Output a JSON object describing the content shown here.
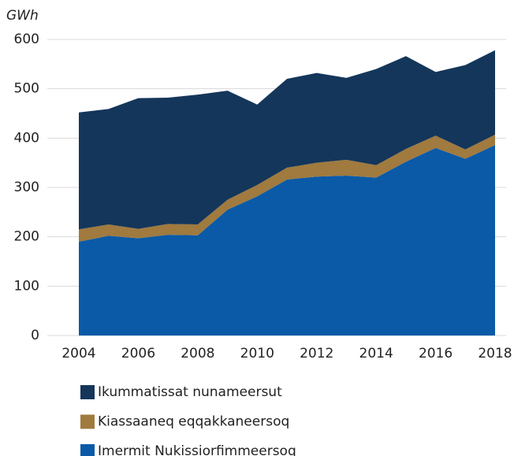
{
  "chart_data": {
    "type": "stacked_area",
    "y_label": "GWh",
    "x": [
      2004,
      2005,
      2006,
      2007,
      2008,
      2009,
      2010,
      2011,
      2012,
      2013,
      2014,
      2015,
      2016,
      2017,
      2018
    ],
    "xlim": [
      2004,
      2018
    ],
    "xticks": [
      2004,
      2006,
      2008,
      2010,
      2012,
      2014,
      2016,
      2018
    ],
    "ylim": [
      0,
      600
    ],
    "yticks": [
      0,
      100,
      200,
      300,
      400,
      500,
      600
    ],
    "grid": true,
    "series": [
      {
        "name": "Ikummatissat nunameersut",
        "color": "#14365a",
        "values": [
          237,
          234,
          265,
          256,
          263,
          221,
          163,
          180,
          182,
          166,
          195,
          188,
          129,
          171,
          171
        ]
      },
      {
        "name": "Kiassaaneq eqqakkaneersoq",
        "color": "#a07a3e",
        "values": [
          25,
          23,
          19,
          22,
          22,
          20,
          23,
          24,
          28,
          32,
          25,
          26,
          25,
          19,
          21
        ]
      },
      {
        "name": "Imermit Nukissiorfimmeersoq",
        "color": "#0a5aa8",
        "values": [
          190,
          202,
          197,
          204,
          203,
          255,
          282,
          316,
          322,
          324,
          320,
          352,
          380,
          358,
          386
        ]
      }
    ]
  }
}
